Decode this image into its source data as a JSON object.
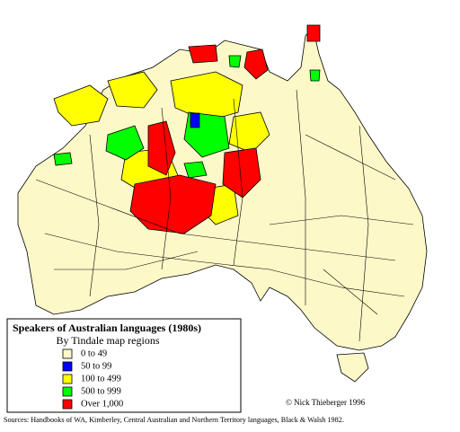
{
  "map": {
    "legend": {
      "title": "Speakers of Australian languages (1980s)",
      "subtitle": "By Tindale map regions",
      "items": [
        {
          "label": "0 to  49",
          "color": "#fdf8c8"
        },
        {
          "label": "50 to  99",
          "color": "#0000ff"
        },
        {
          "label": "100 to 499",
          "color": "#ffff00"
        },
        {
          "label": "500 to 999",
          "color": "#00ff00"
        },
        {
          "label": "Over 1,000",
          "color": "#ff0000"
        }
      ]
    },
    "credit": "© Nick Thieberger 1996",
    "sources": "Sources: Handbooks of WA, Kimberley, Central Australian and Northern Territory languages, Black & Walsh 1982."
  }
}
